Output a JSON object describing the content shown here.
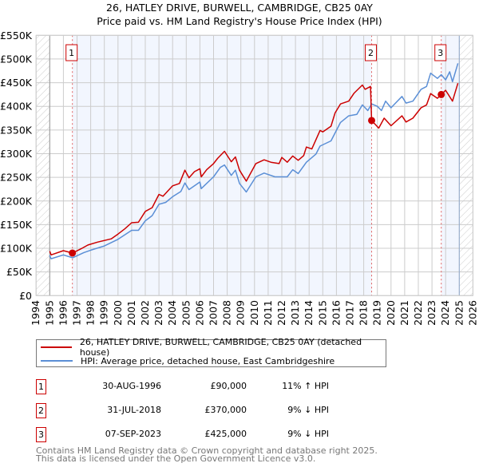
{
  "chart_data": {
    "type": "line",
    "title": "26, HATLEY DRIVE, BURWELL, CAMBRIDGE, CB25 0AY",
    "subtitle": "Price paid vs. HM Land Registry's House Price Index (HPI)",
    "xlim": [
      1994,
      2026
    ],
    "ylim": [
      0,
      550000
    ],
    "x_ticks": [
      "1994",
      "1995",
      "1996",
      "1997",
      "1998",
      "1999",
      "2000",
      "2001",
      "2002",
      "2003",
      "2004",
      "2005",
      "2006",
      "2007",
      "2008",
      "2009",
      "2010",
      "2011",
      "2012",
      "2013",
      "2014",
      "2015",
      "2016",
      "2017",
      "2018",
      "2019",
      "2020",
      "2021",
      "2022",
      "2023",
      "2024",
      "2025",
      "2026"
    ],
    "y_ticks": [
      {
        "value": 0,
        "label": "£0"
      },
      {
        "value": 50000,
        "label": "£50K"
      },
      {
        "value": 100000,
        "label": "£100K"
      },
      {
        "value": 150000,
        "label": "£150K"
      },
      {
        "value": 200000,
        "label": "£200K"
      },
      {
        "value": 250000,
        "label": "£250K"
      },
      {
        "value": 300000,
        "label": "£300K"
      },
      {
        "value": 350000,
        "label": "£350K"
      },
      {
        "value": 400000,
        "label": "£400K"
      },
      {
        "value": 450000,
        "label": "£450K"
      },
      {
        "value": 500000,
        "label": "£500K"
      },
      {
        "value": 550000,
        "label": "£550K"
      }
    ],
    "grid": true,
    "series": [
      {
        "name": "26, HATLEY DRIVE, BURWELL, CAMBRIDGE, CB25 0AY (detached house)",
        "color": "#cc0000",
        "x": [
          1995.0,
          1995.1,
          1996.0,
          1996.67,
          1997.3,
          1997.8,
          1998.5,
          1999.5,
          2000.0,
          2000.5,
          2001.0,
          2001.5,
          2002.0,
          2002.5,
          2003.0,
          2003.3,
          2004.0,
          2004.5,
          2004.9,
          2005.2,
          2005.6,
          2006.0,
          2006.1,
          2006.5,
          2007.0,
          2007.3,
          2007.8,
          2008.3,
          2008.6,
          2008.9,
          2009.4,
          2010.1,
          2010.7,
          2011.2,
          2011.8,
          2012.0,
          2012.4,
          2012.8,
          2013.2,
          2013.6,
          2013.8,
          2014.2,
          2014.8,
          2015.0,
          2015.6,
          2015.9,
          2016.3,
          2016.9,
          2017.3,
          2017.9,
          2018.1,
          2018.5,
          2018.58,
          2019.1,
          2019.5,
          2020.0,
          2020.8,
          2021.1,
          2021.6,
          2022.2,
          2022.6,
          2022.9,
          2023.4,
          2023.68,
          2024.0,
          2024.5,
          2024.9
        ],
        "y": [
          94000,
          86000,
          95000,
          90000,
          99000,
          107000,
          113000,
          120000,
          130000,
          141000,
          154000,
          155000,
          178000,
          186000,
          214000,
          210000,
          232000,
          237000,
          265000,
          249000,
          262000,
          268000,
          251000,
          266000,
          279000,
          290000,
          305000,
          283000,
          293000,
          265000,
          242000,
          279000,
          287000,
          282000,
          279000,
          292000,
          282000,
          295000,
          286000,
          296000,
          314000,
          310000,
          349000,
          346000,
          358000,
          386000,
          405000,
          411000,
          428000,
          445000,
          436000,
          442000,
          370000,
          354000,
          375000,
          359000,
          380000,
          367000,
          375000,
          397000,
          403000,
          427000,
          417000,
          425000,
          434000,
          411000,
          449000
        ]
      },
      {
        "name": "HPI: Average price, detached house, East Cambridgeshire",
        "color": "#5b8fd6",
        "x": [
          1995.0,
          1995.1,
          1996.0,
          1996.67,
          1997.5,
          1998.0,
          1999.0,
          2000.0,
          2001.0,
          2001.5,
          2002.0,
          2002.5,
          2003.0,
          2003.5,
          2004.0,
          2004.6,
          2004.9,
          2005.2,
          2006.0,
          2006.1,
          2007.0,
          2007.5,
          2007.8,
          2008.3,
          2008.6,
          2008.9,
          2009.4,
          2010.1,
          2010.7,
          2011.5,
          2012.4,
          2012.8,
          2013.2,
          2013.8,
          2014.5,
          2014.8,
          2015.6,
          2016.3,
          2016.9,
          2017.5,
          2017.9,
          2018.3,
          2018.58,
          2019.0,
          2019.3,
          2019.6,
          2020.0,
          2020.8,
          2021.1,
          2021.6,
          2022.2,
          2022.6,
          2022.9,
          2023.4,
          2023.68,
          2024.0,
          2024.3,
          2024.5,
          2024.9
        ],
        "y": [
          85000,
          78000,
          86000,
          80000,
          91000,
          96000,
          105000,
          119000,
          138000,
          138000,
          158000,
          169000,
          193000,
          197000,
          209000,
          220000,
          238000,
          224000,
          240000,
          226000,
          251000,
          271000,
          276000,
          254000,
          265000,
          237000,
          219000,
          251000,
          259000,
          251000,
          251000,
          266000,
          258000,
          282000,
          299000,
          316000,
          327000,
          366000,
          380000,
          383000,
          403000,
          391000,
          405000,
          400000,
          391000,
          411000,
          397000,
          421000,
          407000,
          411000,
          436000,
          442000,
          470000,
          459000,
          467000,
          456000,
          473000,
          452000,
          491000
        ]
      }
    ],
    "sales": [
      {
        "id": "1",
        "x": 1996.66,
        "price": 90000
      },
      {
        "id": "2",
        "x": 2018.58,
        "price": 370000
      },
      {
        "id": "3",
        "x": 2023.68,
        "price": 425000
      }
    ],
    "shaded_ranges": [
      [
        1996.66,
        2018.58
      ],
      [
        2023.68,
        2025.0
      ]
    ],
    "hatched_ranges": [
      [
        1994,
        1995
      ],
      [
        2025,
        2026
      ]
    ],
    "legend_placement": "below"
  },
  "legend": {
    "property": "26, HATLEY DRIVE, BURWELL, CAMBRIDGE, CB25 0AY (detached house)",
    "hpi": "HPI: Average price, detached house, East Cambridgeshire"
  },
  "transactions": [
    {
      "id": "1",
      "date": "30-AUG-1996",
      "price": "£90,000",
      "hpi": "11% ↑ HPI"
    },
    {
      "id": "2",
      "date": "31-JUL-2018",
      "price": "£370,000",
      "hpi": "9% ↓ HPI"
    },
    {
      "id": "3",
      "date": "07-SEP-2023",
      "price": "£425,000",
      "hpi": "9% ↓ HPI"
    }
  ],
  "footer": {
    "line1": "Contains HM Land Registry data © Crown copyright and database right 2025.",
    "line2": "This data is licensed under the Open Government Licence v3.0."
  }
}
